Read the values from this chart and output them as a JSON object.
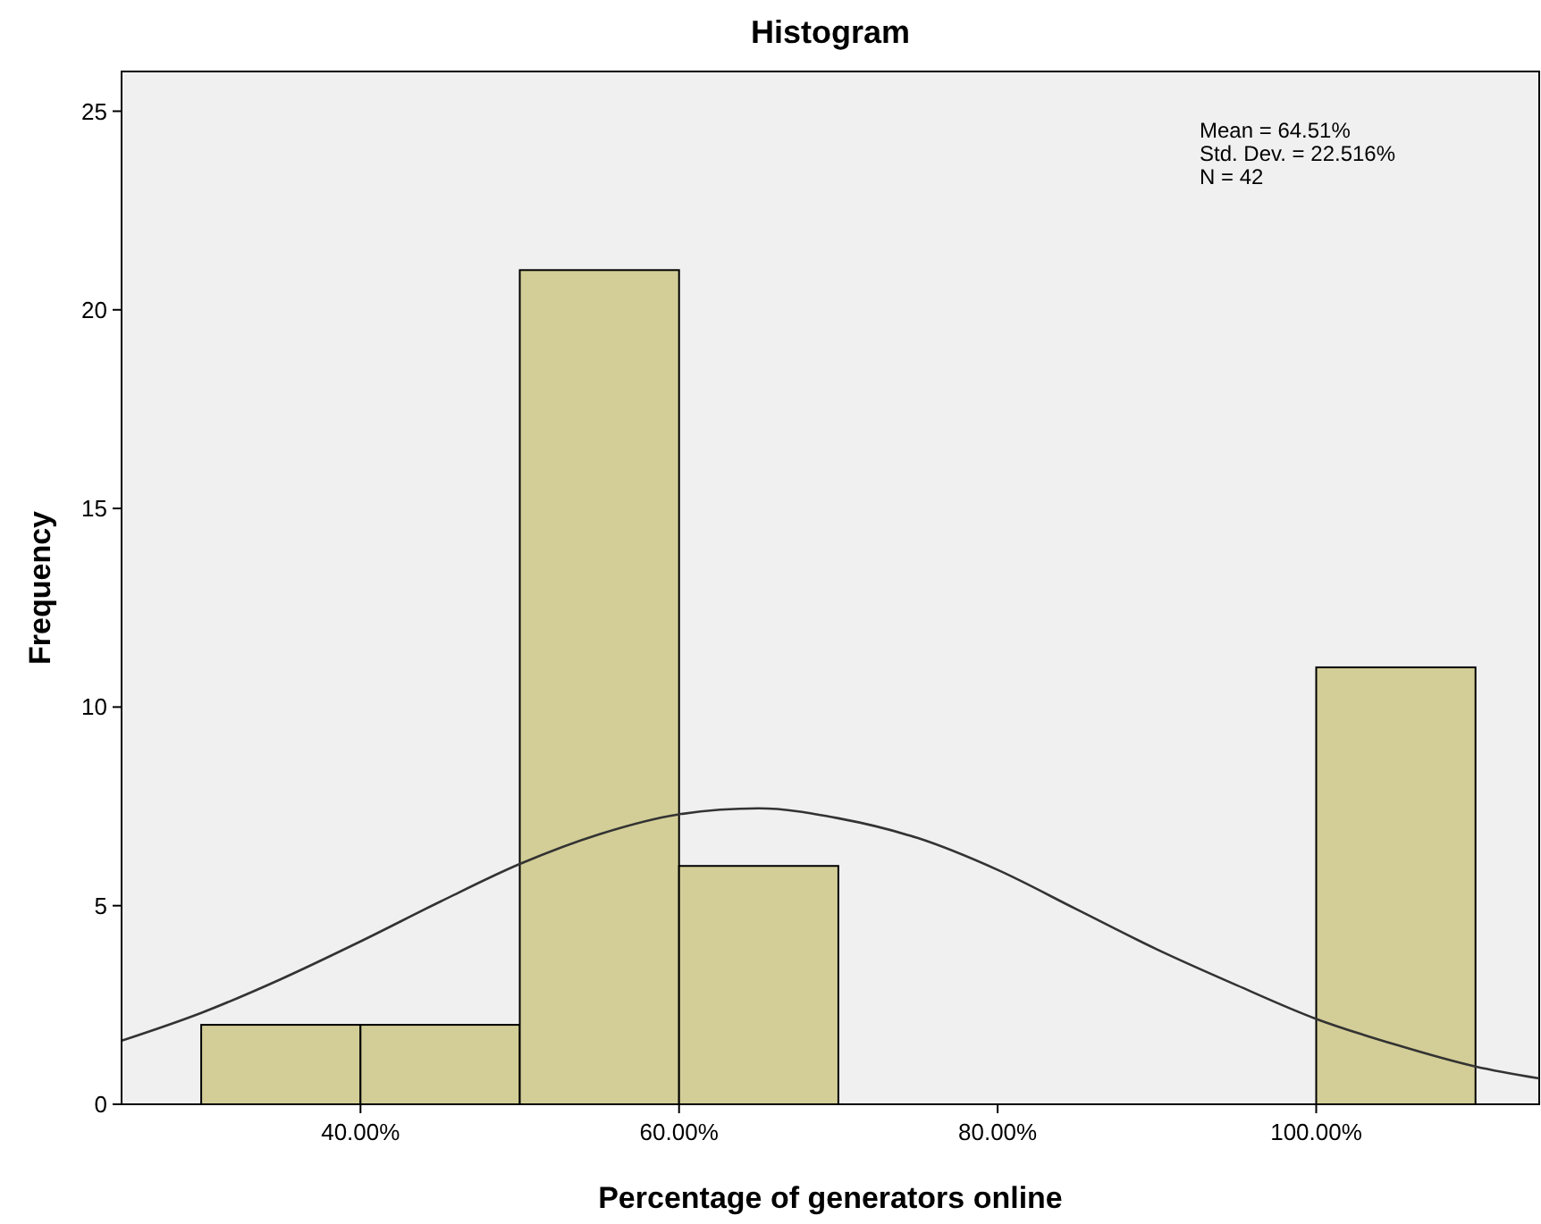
{
  "chart_data": {
    "type": "histogram",
    "title": "Histogram",
    "xlabel": "Percentage of generators online",
    "ylabel": "Frequency",
    "bins": [
      30,
      40,
      50,
      60,
      70,
      80,
      90,
      100,
      110
    ],
    "values": [
      2,
      2,
      21,
      6,
      0,
      0,
      0,
      11
    ],
    "color": "#d3ce97",
    "xlim": [
      25,
      114
    ],
    "xticks": [
      {
        "value": 40,
        "label": "40.00%"
      },
      {
        "value": 60,
        "label": "60.00%"
      },
      {
        "value": 80,
        "label": "80.00%"
      },
      {
        "value": 100,
        "label": "100.00%"
      }
    ],
    "ylim": [
      0,
      26
    ],
    "yticks": [
      0,
      5,
      10,
      15,
      20,
      25
    ],
    "grid": false,
    "series": [
      {
        "type": "line",
        "color": "#333333",
        "x": [
          25,
          30,
          35,
          40,
          45,
          50,
          55,
          60,
          65,
          70,
          75,
          80,
          85,
          90,
          95,
          100,
          105,
          110,
          114
        ],
        "values": [
          1.6,
          2.3,
          3.15,
          4.1,
          5.1,
          6.05,
          6.8,
          7.3,
          7.45,
          7.2,
          6.7,
          5.9,
          4.9,
          3.9,
          3.0,
          2.15,
          1.5,
          0.95,
          0.65
        ]
      }
    ],
    "annotations": [
      "Mean = 64.51%",
      "Std. Dev. = 22.516%",
      "N = 42"
    ]
  }
}
